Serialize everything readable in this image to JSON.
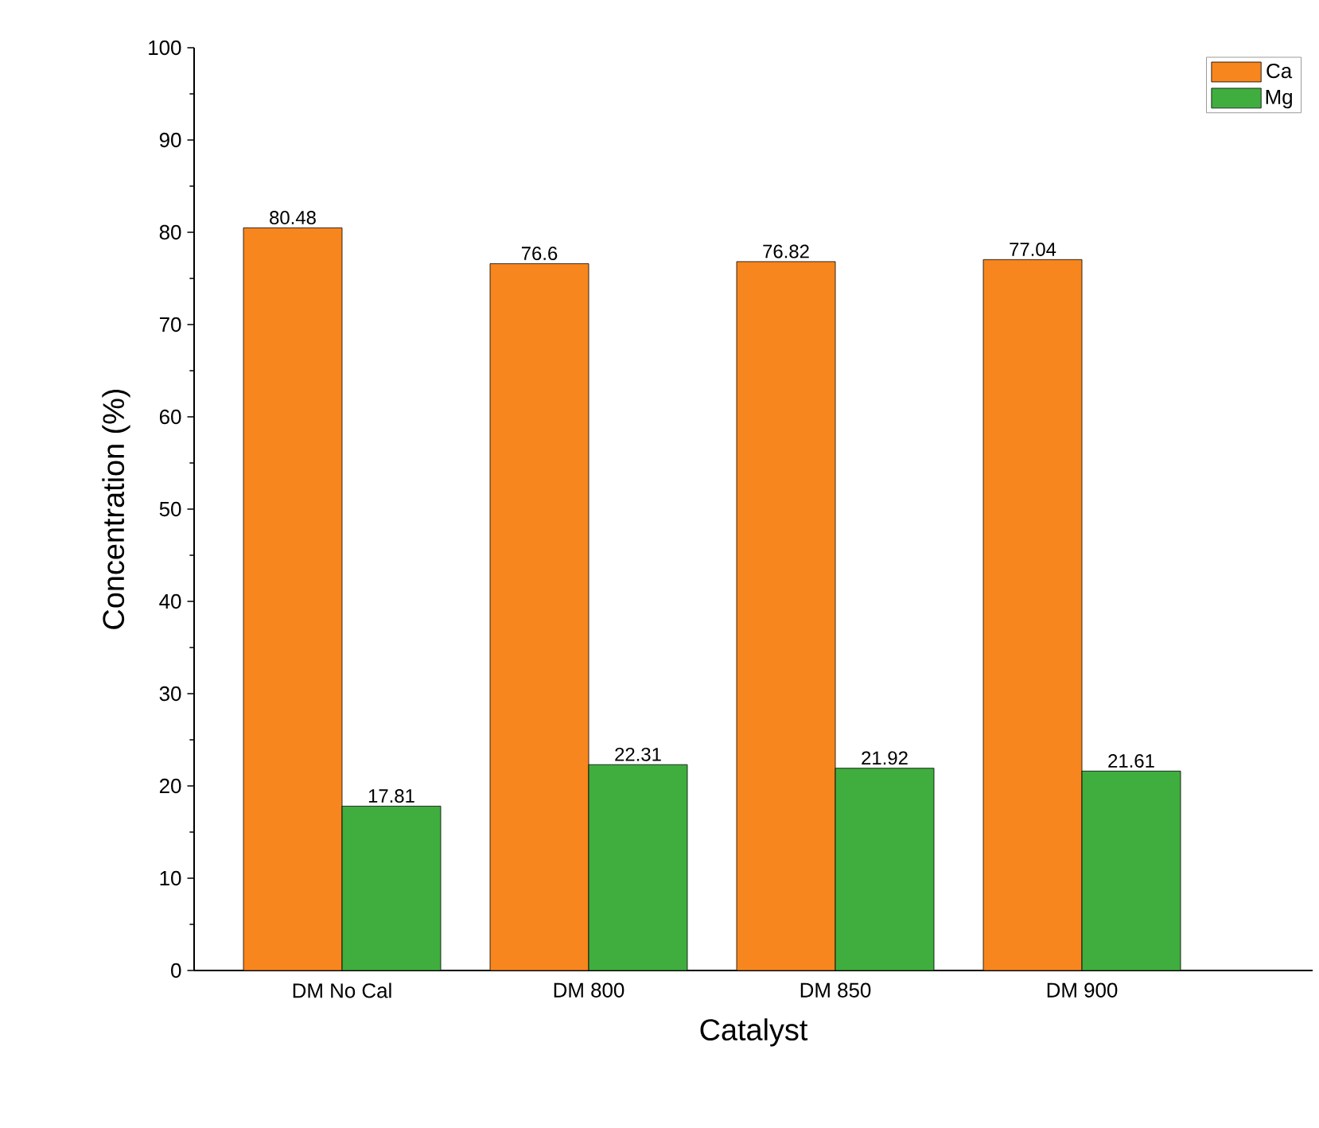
{
  "chart_data": {
    "type": "bar",
    "xlabel": "Catalyst",
    "ylabel": "Concentration (%)",
    "categories": [
      "DM No Cal",
      "DM 800",
      "DM 850",
      "DM 900"
    ],
    "series": [
      {
        "name": "Ca",
        "color": "#f7861e",
        "values": [
          80.48,
          76.6,
          76.82,
          77.04
        ]
      },
      {
        "name": "Mg",
        "color": "#3fae3f",
        "values": [
          17.81,
          22.31,
          21.92,
          21.61
        ]
      }
    ],
    "ylim": [
      0,
      100
    ],
    "yticks": [
      0,
      10,
      20,
      30,
      40,
      50,
      60,
      70,
      80,
      90,
      100
    ],
    "data_labels": true,
    "legend": "top right",
    "grid": false
  }
}
